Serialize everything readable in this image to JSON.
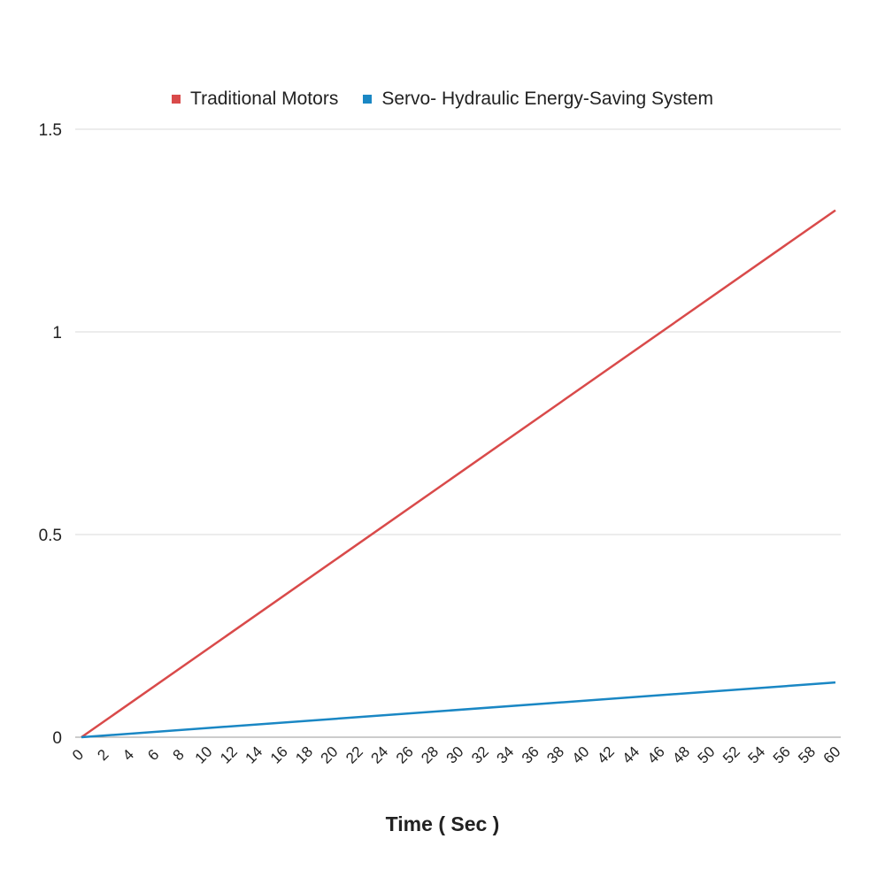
{
  "chart_data": {
    "type": "line",
    "title": "",
    "xlabel": "Time ( Sec )",
    "ylabel": "",
    "x": [
      0,
      2,
      4,
      6,
      8,
      10,
      12,
      14,
      16,
      18,
      20,
      22,
      24,
      26,
      28,
      30,
      32,
      34,
      36,
      38,
      40,
      42,
      44,
      46,
      48,
      50,
      52,
      54,
      56,
      58,
      60
    ],
    "x_tick_labels": [
      "0",
      "2",
      "4",
      "6",
      "8",
      "10",
      "12",
      "14",
      "16",
      "18",
      "20",
      "22",
      "24",
      "26",
      "28",
      "30",
      "32",
      "34",
      "36",
      "38",
      "40",
      "42",
      "44",
      "46",
      "48",
      "50",
      "52",
      "54",
      "56",
      "58",
      "60"
    ],
    "y_ticks": [
      0,
      0.5,
      1,
      1.5
    ],
    "y_tick_labels": [
      "0",
      "0.5",
      "1",
      "1.5"
    ],
    "ylim": [
      0,
      1.5
    ],
    "xlim": [
      0,
      60
    ],
    "grid": true,
    "legend_position": "top-center",
    "series": [
      {
        "name": "Traditional Motors",
        "color": "#d94a4a",
        "x": [
          0,
          60
        ],
        "values": [
          0,
          1.3
        ]
      },
      {
        "name": "Servo- Hydraulic Energy-Saving System",
        "color": "#1a87c4",
        "x": [
          0,
          60
        ],
        "values": [
          0,
          0.135
        ]
      }
    ]
  }
}
